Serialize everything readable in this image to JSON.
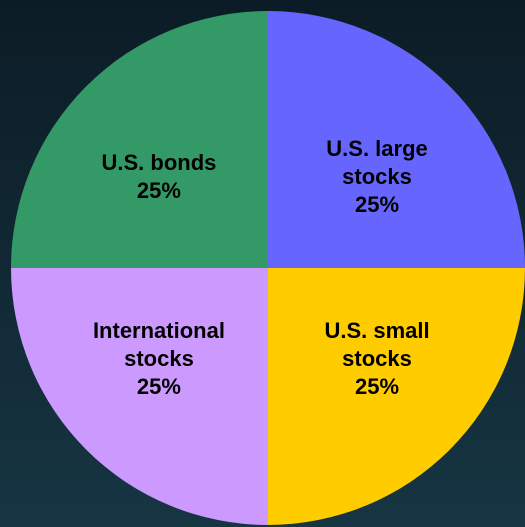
{
  "chart_data": {
    "type": "pie",
    "categories": [
      "U.S. large stocks",
      "U.S. small stocks",
      "International stocks",
      "U.S. bonds"
    ],
    "values": [
      25,
      25,
      25,
      25
    ],
    "value_labels": [
      "25%",
      "25%",
      "25%",
      "25%"
    ],
    "colors": [
      "#6666ff",
      "#ffcc00",
      "#cc99ff",
      "#339966"
    ]
  }
}
